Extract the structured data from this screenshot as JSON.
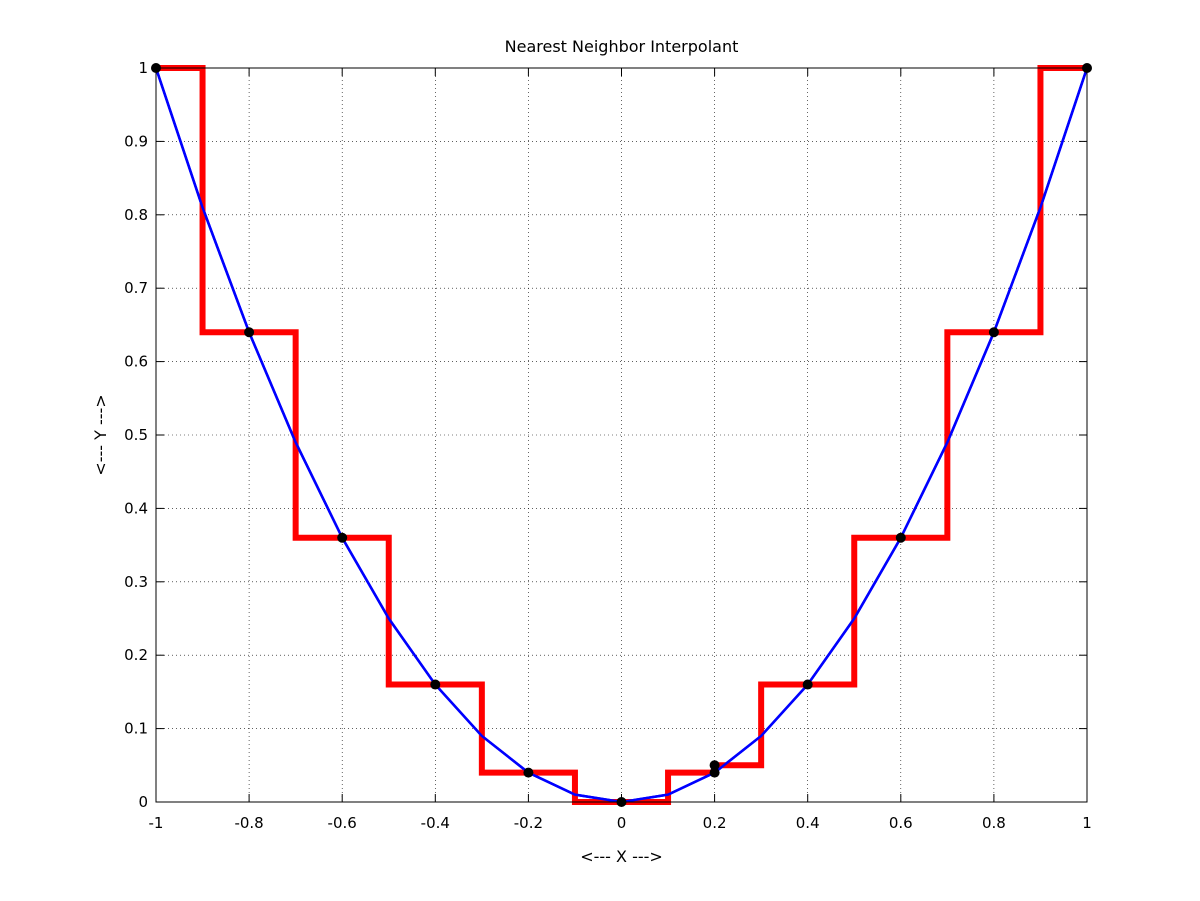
{
  "chart_data": {
    "type": "line",
    "title": "Nearest Neighbor Interpolant",
    "xlabel": "<--- X --->",
    "ylabel": "<--- Y --->",
    "xlim": [
      -1,
      1
    ],
    "ylim": [
      0,
      1
    ],
    "xticks": [
      -1,
      -0.8,
      -0.6,
      -0.4,
      -0.2,
      0,
      0.2,
      0.4,
      0.6,
      0.8,
      1
    ],
    "xtick_labels": [
      "-1",
      "-0.8",
      "-0.6",
      "-0.4",
      "-0.2",
      "0",
      "0.2",
      "0.4",
      "0.6",
      "0.8",
      "1"
    ],
    "yticks": [
      0,
      0.1,
      0.2,
      0.3,
      0.4,
      0.5,
      0.6,
      0.7,
      0.8,
      0.9,
      1
    ],
    "ytick_labels": [
      "0",
      "0.1",
      "0.2",
      "0.3",
      "0.4",
      "0.5",
      "0.6",
      "0.7",
      "0.8",
      "0.9",
      "1"
    ],
    "grid": true,
    "grid_style": "dotted",
    "series": [
      {
        "kind": "smooth-curve",
        "color": "#0000ff",
        "x": [
          -1,
          -0.9,
          -0.8,
          -0.7,
          -0.6,
          -0.5,
          -0.4,
          -0.3,
          -0.2,
          -0.1,
          0,
          0.1,
          0.2,
          0.3,
          0.4,
          0.5,
          0.6,
          0.7,
          0.8,
          0.9,
          1
        ],
        "y": [
          1,
          0.81,
          0.64,
          0.49,
          0.36,
          0.25,
          0.16,
          0.09,
          0.04,
          0.01,
          0,
          0.01,
          0.04,
          0.09,
          0.16,
          0.25,
          0.36,
          0.49,
          0.64,
          0.81,
          1
        ]
      },
      {
        "kind": "nearest-neighbor-step",
        "color": "#ff0000",
        "x": [
          -1,
          -0.9,
          -0.9,
          -0.7,
          -0.7,
          -0.5,
          -0.5,
          -0.3,
          -0.3,
          -0.1,
          -0.1,
          0.1,
          0.1,
          0.2,
          0.2,
          0.3,
          0.3,
          0.5,
          0.5,
          0.7,
          0.7,
          0.9,
          0.9,
          1
        ],
        "y": [
          1,
          1,
          0.64,
          0.64,
          0.36,
          0.36,
          0.16,
          0.16,
          0.04,
          0.04,
          0,
          0,
          0.04,
          0.04,
          0.05,
          0.05,
          0.16,
          0.16,
          0.36,
          0.36,
          0.64,
          0.64,
          1,
          1
        ]
      },
      {
        "kind": "markers",
        "color": "#000000",
        "x": [
          -1,
          -0.8,
          -0.6,
          -0.4,
          -0.2,
          0,
          0.2,
          0.2,
          0.4,
          0.6,
          0.8,
          1
        ],
        "y": [
          1,
          0.64,
          0.36,
          0.16,
          0.04,
          0,
          0.04,
          0.05,
          0.16,
          0.36,
          0.64,
          1
        ]
      }
    ]
  }
}
